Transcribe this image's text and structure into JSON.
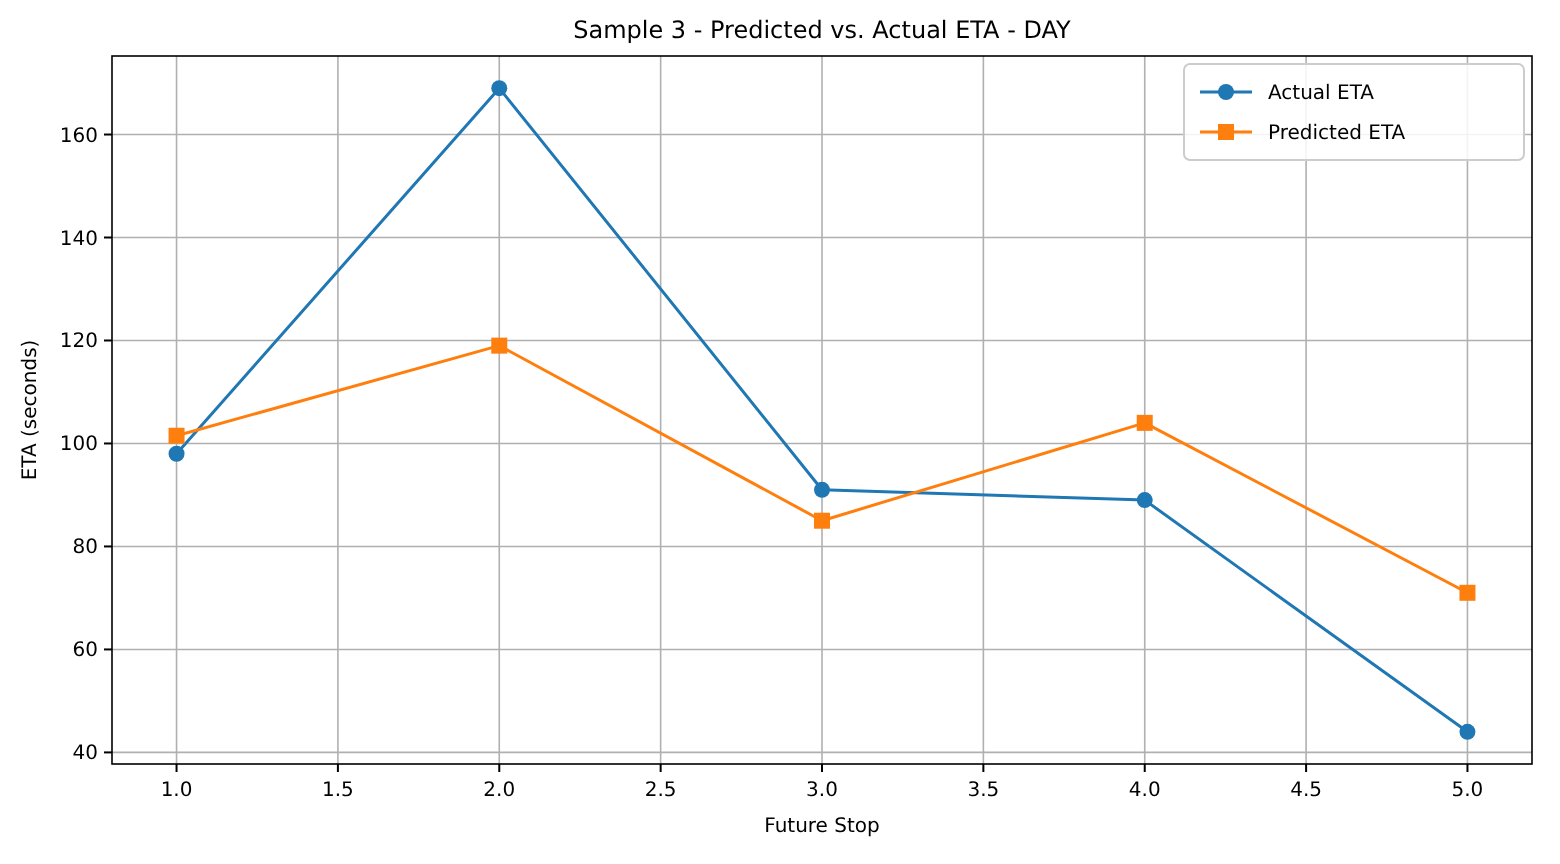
{
  "chart_data": {
    "type": "line",
    "title": "Sample 3 - Predicted vs. Actual ETA - DAY",
    "xlabel": "Future Stop",
    "ylabel": "ETA (seconds)",
    "x": [
      1,
      2,
      3,
      4,
      5
    ],
    "series": [
      {
        "name": "Actual ETA",
        "color": "#1f77b4",
        "marker": "circle",
        "values": [
          98,
          169,
          91,
          89,
          44
        ]
      },
      {
        "name": "Predicted ETA",
        "color": "#ff7f0e",
        "marker": "square",
        "values": [
          101.5,
          119,
          85,
          104,
          71
        ]
      }
    ],
    "xlim": [
      0.8,
      5.2
    ],
    "xticks": [
      {
        "value": 1,
        "label": "1.0"
      },
      {
        "value": 1.5,
        "label": "1.5"
      },
      {
        "value": 2,
        "label": "2.0"
      },
      {
        "value": 2.5,
        "label": "2.5"
      },
      {
        "value": 3,
        "label": "3.0"
      },
      {
        "value": 3.5,
        "label": "3.5"
      },
      {
        "value": 4,
        "label": "4.0"
      },
      {
        "value": 4.5,
        "label": "4.5"
      },
      {
        "value": 5,
        "label": "5.0"
      }
    ],
    "ylim": [
      37.75,
      175.25
    ],
    "yticks": [
      40,
      60,
      80,
      100,
      120,
      140,
      160
    ],
    "grid": true,
    "legend": "top right"
  }
}
